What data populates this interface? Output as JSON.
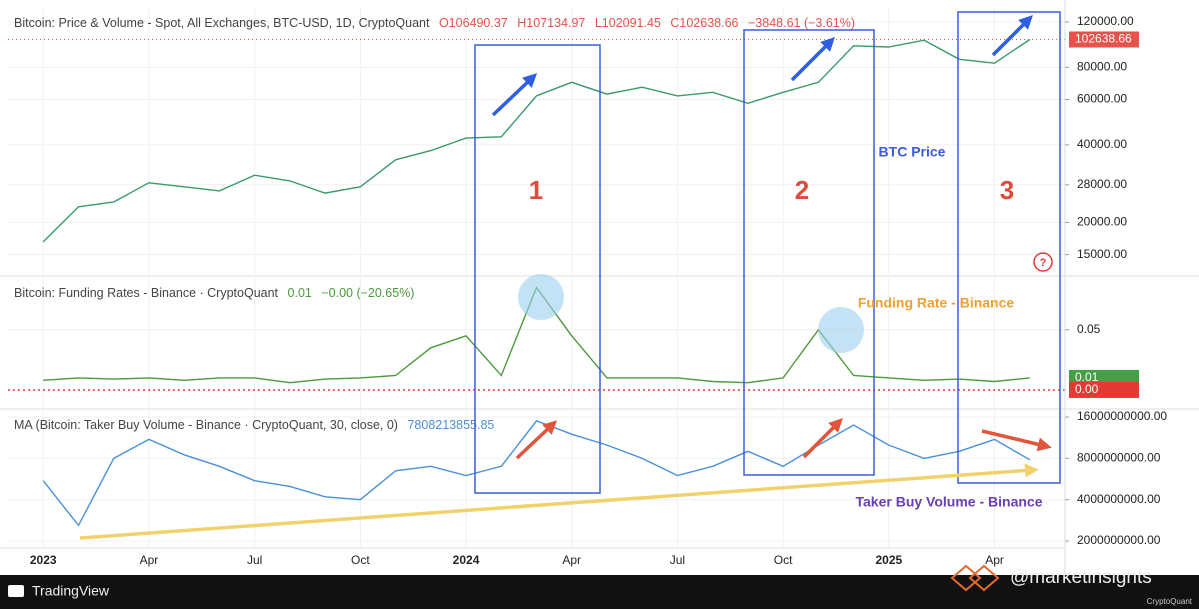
{
  "x_axis": {
    "xlim": [
      "2022-12",
      "2025-06"
    ],
    "xticks": [
      {
        "value": "2023-01",
        "label": "2023"
      },
      {
        "value": "2023-04",
        "label": "Apr"
      },
      {
        "value": "2023-07",
        "label": "Jul"
      },
      {
        "value": "2023-10",
        "label": "Oct"
      },
      {
        "value": "2024-01",
        "label": "2024"
      },
      {
        "value": "2024-04",
        "label": "Apr"
      },
      {
        "value": "2024-07",
        "label": "Jul"
      },
      {
        "value": "2024-10",
        "label": "Oct"
      },
      {
        "value": "2025-01",
        "label": "2025"
      },
      {
        "value": "2025-04",
        "label": "Apr"
      }
    ]
  },
  "chart_data": [
    {
      "type": "line",
      "title": "Bitcoin: Price & Volume - Spot, All Exchanges, BTC-USD, 1D, CryptoQuant",
      "header_values": [
        "O106490.37",
        "H107134.97",
        "L102091.45",
        "C102638.66",
        "−3848.61 (−3.61%)"
      ],
      "log_scale": true,
      "color": "#3a9a6a",
      "x": [
        "2023-01",
        "2023-02",
        "2023-03",
        "2023-04",
        "2023-05",
        "2023-06",
        "2023-07",
        "2023-08",
        "2023-09",
        "2023-10",
        "2023-11",
        "2023-12",
        "2024-01",
        "2024-02",
        "2024-03",
        "2024-04",
        "2024-05",
        "2024-06",
        "2024-07",
        "2024-08",
        "2024-09",
        "2024-10",
        "2024-11",
        "2024-12",
        "2025-01",
        "2025-02",
        "2025-03",
        "2025-04",
        "2025-05"
      ],
      "values": [
        16800,
        23000,
        24000,
        28500,
        27500,
        26500,
        30500,
        29000,
        26000,
        27500,
        35000,
        38000,
        42500,
        43000,
        62000,
        70000,
        63000,
        67000,
        62000,
        64000,
        58000,
        64000,
        70000,
        97000,
        96000,
        102000,
        86000,
        83000,
        102638.66
      ],
      "ylim": [
        12500,
        136000
      ],
      "yticks": [
        {
          "value": 15000,
          "label": "15000.00"
        },
        {
          "value": 20000,
          "label": "20000.00"
        },
        {
          "value": 28000,
          "label": "28000.00"
        },
        {
          "value": 40000,
          "label": "40000.00"
        },
        {
          "value": 60000,
          "label": "60000.00"
        },
        {
          "value": 80000,
          "label": "80000.00"
        },
        {
          "value": 120000,
          "label": "120000.00"
        }
      ],
      "price_labels": [
        {
          "value": 102638.66,
          "label": "102638.66",
          "color": "#e5534b"
        }
      ]
    },
    {
      "type": "line",
      "title": "Bitcoin: Funding Rates - Binance · CryptoQuant",
      "header_values": [
        "0.01",
        "−0.00 (−20.65%)"
      ],
      "log_scale": false,
      "color": "#4c9a3c",
      "x": [
        "2023-01",
        "2023-02",
        "2023-03",
        "2023-04",
        "2023-05",
        "2023-06",
        "2023-07",
        "2023-08",
        "2023-09",
        "2023-10",
        "2023-11",
        "2023-12",
        "2024-01",
        "2024-02",
        "2024-03",
        "2024-04",
        "2024-05",
        "2024-06",
        "2024-07",
        "2024-08",
        "2024-09",
        "2024-10",
        "2024-11",
        "2024-12",
        "2025-01",
        "2025-02",
        "2025-03",
        "2025-04",
        "2025-05"
      ],
      "values": [
        0.008,
        0.01,
        0.009,
        0.01,
        0.008,
        0.01,
        0.01,
        0.006,
        0.009,
        0.01,
        0.012,
        0.035,
        0.045,
        0.012,
        0.085,
        0.045,
        0.01,
        0.01,
        0.01,
        0.007,
        0.006,
        0.01,
        0.05,
        0.012,
        0.01,
        0.008,
        0.009,
        0.007,
        0.01
      ],
      "ylim": [
        -0.015,
        0.093
      ],
      "yticks": [
        0.05
      ],
      "zero_line": 0,
      "price_labels": [
        {
          "value": 0.01,
          "label": "0.01",
          "color": "#43a047"
        },
        {
          "value": 0,
          "label": "0.00",
          "color": "#e53935"
        }
      ]
    },
    {
      "type": "line",
      "title": "MA (Bitcoin: Taker Buy Volume - Binance · CryptoQuant, 30, close, 0)",
      "header_values": [
        "7808213855.85"
      ],
      "log_scale": true,
      "color": "#4a90d9",
      "x": [
        "2023-01",
        "2023-02",
        "2023-03",
        "2023-04",
        "2023-05",
        "2023-06",
        "2023-07",
        "2023-08",
        "2023-09",
        "2023-10",
        "2023-11",
        "2023-12",
        "2024-01",
        "2024-02",
        "2024-03",
        "2024-04",
        "2024-05",
        "2024-06",
        "2024-07",
        "2024-08",
        "2024-09",
        "2024-10",
        "2024-11",
        "2024-12",
        "2025-01",
        "2025-02",
        "2025-03",
        "2025-04",
        "2025-05"
      ],
      "values": [
        5500000000,
        2600000000,
        8000000000,
        11000000000,
        8500000000,
        7000000000,
        5500000000,
        5000000000,
        4200000000,
        4000000000,
        6500000000,
        7000000000,
        6000000000,
        7000000000,
        15000000000,
        12000000000,
        10000000000,
        8000000000,
        6000000000,
        7000000000,
        9000000000,
        7000000000,
        10000000000,
        14000000000,
        10000000000,
        8000000000,
        9000000000,
        11000000000,
        7808213855.85
      ],
      "ylim": [
        1780000000,
        18000000000
      ],
      "yticks": [
        {
          "value": 2000000000,
          "label": "2000000000.00"
        },
        {
          "value": 4000000000,
          "label": "4000000000.00"
        },
        {
          "value": 8000000000,
          "label": "8000000000.00"
        },
        {
          "value": 16000000000,
          "label": "16000000000.00"
        }
      ]
    }
  ],
  "annotations": [
    "1",
    "2",
    "3",
    "BTC Price",
    "Funding Rate - Binance",
    "Taker Buy Volume - Binance"
  ],
  "footer": {
    "brand": "TradingView",
    "handle": "@marketinsights",
    "source": "CryptoQuant"
  }
}
